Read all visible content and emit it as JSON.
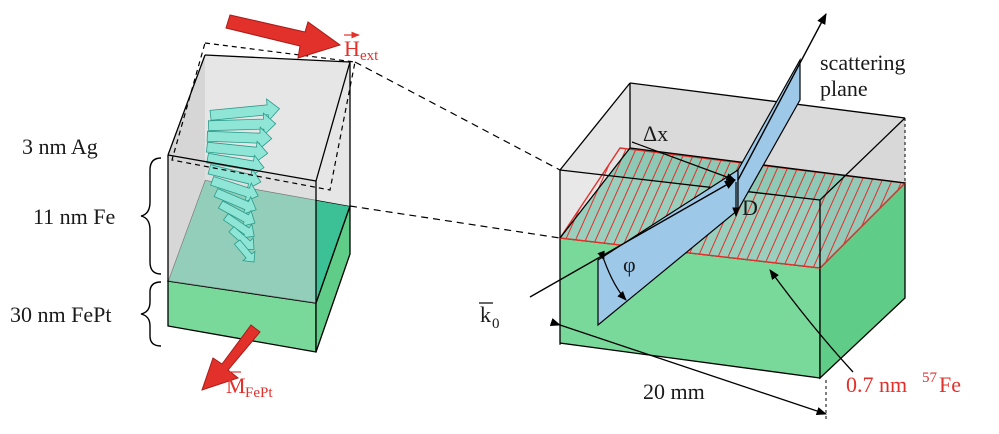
{
  "left": {
    "layers": {
      "ag": "3 nm Ag",
      "fe": "11 nm Fe",
      "fept": "30 nm FePt"
    },
    "h_ext": {
      "symbol": "H",
      "subscript": "ext"
    },
    "m_fept": {
      "symbol": "M",
      "subscript": "FePt"
    }
  },
  "right": {
    "scattering_plane": [
      "scattering",
      "plane"
    ],
    "delta_x": "Δx",
    "d": "D",
    "phi": "φ",
    "k0": {
      "symbol": "k",
      "subscript": "0"
    },
    "width": "20 mm",
    "marker": {
      "thickness": "0.7 nm ",
      "isotope_mass": "57",
      "element": "Fe"
    }
  },
  "colors": {
    "gray": "#d9d9d9",
    "fe_green": "#3cc196",
    "fept_green": "#79d99a",
    "spin_cyan": "#8fe6d6",
    "arrow_red": "#e2302b",
    "plane_blue": "#9dc8e8",
    "hatch_red": "#e2302b"
  }
}
